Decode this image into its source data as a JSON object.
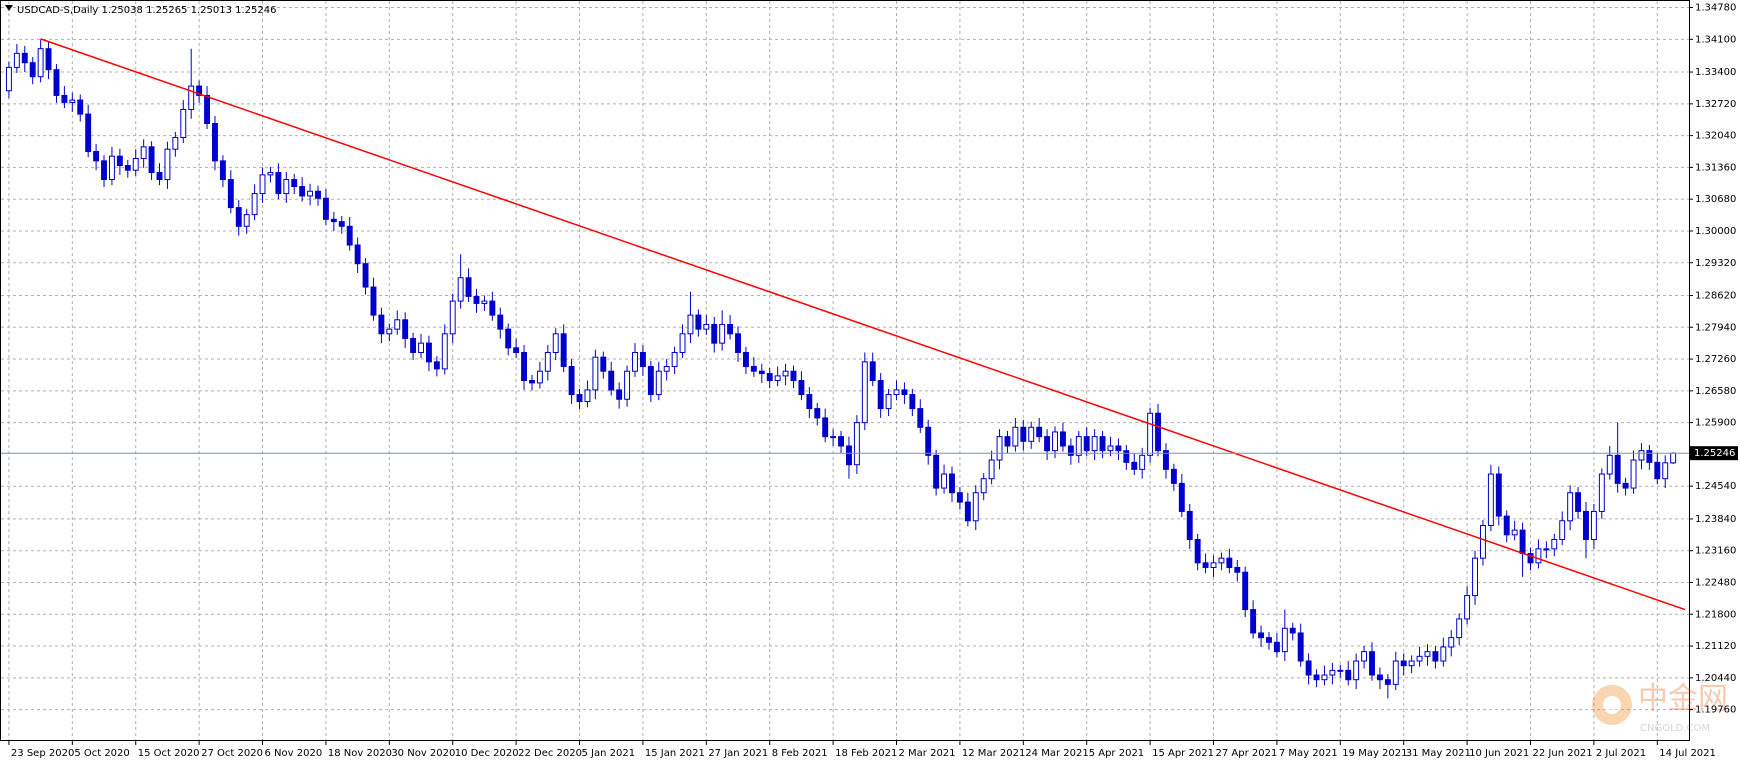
{
  "chart_data": {
    "type": "candlestick",
    "symbol": "USDCAD-S,Daily",
    "up_color": "#ffffff",
    "down_color": "#0000cc",
    "wick_color": "#0000cc",
    "grid": true,
    "ylim": [
      1.1911,
      1.3492
    ],
    "yticks": [
      {
        "value": 1.3478,
        "label": "1.34780"
      },
      {
        "value": 1.341,
        "label": "1.34100"
      },
      {
        "value": 1.334,
        "label": "1.33400"
      },
      {
        "value": 1.3272,
        "label": "1.32720"
      },
      {
        "value": 1.3204,
        "label": "1.32040"
      },
      {
        "value": 1.3136,
        "label": "1.31360"
      },
      {
        "value": 1.3068,
        "label": "1.30680"
      },
      {
        "value": 1.3,
        "label": "1.30000"
      },
      {
        "value": 1.2932,
        "label": "1.29320"
      },
      {
        "value": 1.2862,
        "label": "1.28620"
      },
      {
        "value": 1.2794,
        "label": "1.27940"
      },
      {
        "value": 1.2726,
        "label": "1.27260"
      },
      {
        "value": 1.2658,
        "label": "1.26580"
      },
      {
        "value": 1.259,
        "label": "1.25900"
      },
      {
        "value": 1.2454,
        "label": "1.24540"
      },
      {
        "value": 1.2384,
        "label": "1.23840"
      },
      {
        "value": 1.2316,
        "label": "1.23160"
      },
      {
        "value": 1.2248,
        "label": "1.22480"
      },
      {
        "value": 1.218,
        "label": "1.21800"
      },
      {
        "value": 1.2112,
        "label": "1.21120"
      },
      {
        "value": 1.2044,
        "label": "1.20440"
      },
      {
        "value": 1.1976,
        "label": "1.19760"
      }
    ],
    "xlim": [
      -1,
      212
    ],
    "xticks": [
      {
        "value": 0,
        "label": "23 Sep 2020"
      },
      {
        "value": 8,
        "label": "5 Oct 2020"
      },
      {
        "value": 16,
        "label": "15 Oct 2020"
      },
      {
        "value": 24,
        "label": "27 Oct 2020"
      },
      {
        "value": 32,
        "label": "6 Nov 2020"
      },
      {
        "value": 40,
        "label": "18 Nov 2020"
      },
      {
        "value": 48,
        "label": "30 Nov 2020"
      },
      {
        "value": 56,
        "label": "10 Dec 2020"
      },
      {
        "value": 64,
        "label": "22 Dec 2020"
      },
      {
        "value": 72,
        "label": "5 Jan 2021"
      },
      {
        "value": 80,
        "label": "15 Jan 2021"
      },
      {
        "value": 88,
        "label": "27 Jan 2021"
      },
      {
        "value": 96,
        "label": "8 Feb 2021"
      },
      {
        "value": 104,
        "label": "18 Feb 2021"
      },
      {
        "value": 112,
        "label": "2 Mar 2021"
      },
      {
        "value": 120,
        "label": "12 Mar 2021"
      },
      {
        "value": 128,
        "label": "24 Mar 2021"
      },
      {
        "value": 136,
        "label": "5 Apr 2021"
      },
      {
        "value": 144,
        "label": "15 Apr 2021"
      },
      {
        "value": 152,
        "label": "27 Apr 2021"
      },
      {
        "value": 160,
        "label": "7 May 2021"
      },
      {
        "value": 168,
        "label": "19 May 2021"
      },
      {
        "value": 176,
        "label": "31 May 2021"
      },
      {
        "value": 184,
        "label": "10 Jun 2021"
      },
      {
        "value": 192,
        "label": "22 Jun 2021"
      },
      {
        "value": 200,
        "label": "2 Jul 2021"
      },
      {
        "value": 208,
        "label": "14 Jul 2021"
      }
    ],
    "open": [
      1.33,
      1.335,
      1.338,
      1.336,
      1.333,
      1.339,
      1.3345,
      1.329,
      1.3275,
      1.328,
      1.325,
      1.317,
      1.315,
      1.311,
      1.316,
      1.314,
      1.313,
      1.3155,
      1.318,
      1.3125,
      1.311,
      1.3175,
      1.32,
      1.326,
      1.331,
      1.329,
      1.323,
      1.315,
      1.311,
      1.305,
      1.301,
      1.3035,
      1.308,
      1.312,
      1.3125,
      1.308,
      1.311,
      1.3095,
      1.3075,
      1.3085,
      1.307,
      1.3025,
      1.302,
      1.301,
      1.297,
      1.293,
      1.288,
      1.282,
      1.278,
      1.279,
      1.281,
      1.277,
      1.274,
      1.276,
      1.272,
      1.2705,
      1.278,
      1.285,
      1.29,
      1.286,
      1.2845,
      1.285,
      1.282,
      1.279,
      1.275,
      1.274,
      1.268,
      1.2675,
      1.27,
      1.274,
      1.278,
      1.271,
      1.265,
      1.2635,
      1.266,
      1.273,
      1.27,
      1.266,
      1.264,
      1.27,
      1.274,
      1.271,
      1.265,
      1.27,
      1.271,
      1.274,
      1.278,
      1.282,
      1.279,
      1.28,
      1.276,
      1.28,
      1.278,
      1.274,
      1.271,
      1.27,
      1.2695,
      1.268,
      1.269,
      1.27,
      1.268,
      1.265,
      1.262,
      1.26,
      1.256,
      1.256,
      1.254,
      1.25,
      1.259,
      1.272,
      1.268,
      1.262,
      1.265,
      1.266,
      1.265,
      1.262,
      1.258,
      1.252,
      1.245,
      1.248,
      1.244,
      1.242,
      1.238,
      1.244,
      1.247,
      1.251,
      1.256,
      1.254,
      1.258,
      1.255,
      1.258,
      1.256,
      1.253,
      1.257,
      1.254,
      1.252,
      1.256,
      1.253,
      1.256,
      1.253,
      1.254,
      1.253,
      1.2505,
      1.249,
      1.252,
      1.261,
      1.253,
      1.249,
      1.246,
      1.24,
      1.234,
      1.229,
      1.228,
      1.229,
      1.23,
      1.228,
      1.227,
      1.219,
      1.214,
      1.213,
      1.212,
      1.21,
      1.215,
      1.214,
      1.208,
      1.205,
      1.204,
      1.205,
      1.206,
      1.206,
      1.204,
      1.208,
      1.21,
      1.205,
      1.204,
      1.203,
      1.208,
      1.207,
      1.208,
      1.209,
      1.21,
      1.208,
      1.211,
      1.213,
      1.217,
      1.222,
      1.23,
      1.237,
      1.248,
      1.239,
      1.235,
      1.236,
      1.231,
      1.229,
      1.232,
      1.232,
      1.234,
      1.238,
      1.244,
      1.24,
      1.234,
      1.24,
      1.248,
      1.252,
      1.246,
      1.245,
      1.251,
      1.253,
      1.2505,
      1.247,
      1.25038
    ],
    "high": [
      1.3362,
      1.34,
      1.3396,
      1.3372,
      1.341,
      1.3406,
      1.3357,
      1.331,
      1.3296,
      1.3292,
      1.327,
      1.3186,
      1.3162,
      1.318,
      1.3176,
      1.3152,
      1.3175,
      1.3196,
      1.3192,
      1.3145,
      1.3191,
      1.3212,
      1.328,
      1.339,
      1.3322,
      1.331,
      1.3246,
      1.3162,
      1.313,
      1.3066,
      1.3047,
      1.31,
      1.3136,
      1.3137,
      1.3145,
      1.3126,
      1.3122,
      1.3115,
      1.3101,
      1.3097,
      1.309,
      1.3041,
      1.3032,
      1.303,
      1.2986,
      1.2942,
      1.29,
      1.2836,
      1.2802,
      1.283,
      1.2826,
      1.2782,
      1.278,
      1.2776,
      1.2732,
      1.28,
      1.2866,
      1.295,
      1.292,
      1.2876,
      1.2862,
      1.287,
      1.2836,
      1.2802,
      1.277,
      1.2756,
      1.2692,
      1.272,
      1.2756,
      1.2792,
      1.28,
      1.2726,
      1.2662,
      1.268,
      1.2746,
      1.2742,
      1.272,
      1.2676,
      1.2712,
      1.276,
      1.2756,
      1.2722,
      1.272,
      1.2726,
      1.2752,
      1.28,
      1.287,
      1.2832,
      1.282,
      1.2816,
      1.283,
      1.282,
      1.2796,
      1.2752,
      1.273,
      1.2716,
      1.2707,
      1.271,
      1.2716,
      1.2712,
      1.27,
      1.2666,
      1.2632,
      1.262,
      1.2576,
      1.2572,
      1.256,
      1.2606,
      1.274,
      1.274,
      1.2696,
      1.2662,
      1.268,
      1.2676,
      1.2662,
      1.264,
      1.2596,
      1.2532,
      1.25,
      1.2496,
      1.2452,
      1.244,
      1.2456,
      1.2482,
      1.253,
      1.2576,
      1.2572,
      1.26,
      1.2596,
      1.2592,
      1.26,
      1.2576,
      1.2582,
      1.259,
      1.2556,
      1.2572,
      1.258,
      1.2576,
      1.2572,
      1.256,
      1.2556,
      1.2542,
      1.2525,
      1.2536,
      1.2622,
      1.263,
      1.2546,
      1.2502,
      1.248,
      1.2416,
      1.2352,
      1.231,
      1.2306,
      1.2312,
      1.232,
      1.2296,
      1.2282,
      1.221,
      1.2156,
      1.2142,
      1.214,
      1.219,
      1.2162,
      1.216,
      1.2096,
      1.2062,
      1.207,
      1.2076,
      1.2072,
      1.208,
      1.2096,
      1.2112,
      1.212,
      1.2066,
      1.2052,
      1.21,
      1.2096,
      1.2092,
      1.211,
      1.2116,
      1.2112,
      1.213,
      1.2146,
      1.2182,
      1.224,
      1.2316,
      1.2382,
      1.25,
      1.2496,
      1.2402,
      1.238,
      1.2376,
      1.2322,
      1.234,
      1.2336,
      1.2352,
      1.24,
      1.2456,
      1.2452,
      1.242,
      1.2416,
      1.2492,
      1.254,
      1.259,
      1.2472,
      1.253,
      1.2546,
      1.2542,
      1.2525,
      1.252,
      1.25265
    ],
    "low": [
      1.3284,
      1.3338,
      1.334,
      1.3314,
      1.3318,
      1.3325,
      1.3274,
      1.3263,
      1.3255,
      1.3234,
      1.3158,
      1.313,
      1.3094,
      1.3098,
      1.312,
      1.3114,
      1.3118,
      1.3135,
      1.3109,
      1.3098,
      1.309,
      1.3159,
      1.3188,
      1.324,
      1.3274,
      1.3218,
      1.313,
      1.3094,
      1.3038,
      1.299,
      1.2994,
      1.3023,
      1.306,
      1.3104,
      1.3068,
      1.306,
      1.3079,
      1.3063,
      1.3055,
      1.3054,
      1.3013,
      1.3,
      1.2994,
      1.2958,
      1.291,
      1.2864,
      1.2808,
      1.276,
      1.2764,
      1.2778,
      1.275,
      1.2724,
      1.2728,
      1.27,
      1.2689,
      1.2693,
      1.276,
      1.2834,
      1.2848,
      1.2825,
      1.2829,
      1.2808,
      1.277,
      1.2734,
      1.2728,
      1.266,
      1.2659,
      1.2663,
      1.268,
      1.2724,
      1.2698,
      1.263,
      1.2619,
      1.2623,
      1.264,
      1.2684,
      1.2648,
      1.262,
      1.2624,
      1.2688,
      1.269,
      1.2634,
      1.2638,
      1.268,
      1.2694,
      1.2728,
      1.276,
      1.2774,
      1.2778,
      1.274,
      1.2744,
      1.2768,
      1.272,
      1.2694,
      1.2688,
      1.2675,
      1.2664,
      1.2668,
      1.267,
      1.2664,
      1.2638,
      1.26,
      1.2584,
      1.2548,
      1.254,
      1.2524,
      1.247,
      1.248,
      1.2574,
      1.2668,
      1.26,
      1.2604,
      1.2638,
      1.263,
      1.2604,
      1.2568,
      1.25,
      1.2434,
      1.2438,
      1.242,
      1.2404,
      1.2368,
      1.236,
      1.2424,
      1.2458,
      1.249,
      1.2524,
      1.2528,
      1.253,
      1.2534,
      1.2548,
      1.251,
      1.2514,
      1.2528,
      1.25,
      1.2504,
      1.2518,
      1.251,
      1.2514,
      1.2518,
      1.251,
      1.2489,
      1.2478,
      1.247,
      1.2504,
      1.2518,
      1.247,
      1.2444,
      1.2388,
      1.232,
      1.2274,
      1.2268,
      1.226,
      1.2274,
      1.2268,
      1.225,
      1.2174,
      1.2128,
      1.211,
      1.2104,
      1.2088,
      1.208,
      1.2124,
      1.2068,
      1.203,
      1.2024,
      1.2028,
      1.203,
      1.2044,
      1.2028,
      1.202,
      1.2064,
      1.2038,
      1.202,
      1.2,
      1.2018,
      1.205,
      1.2054,
      1.2068,
      1.207,
      1.2064,
      1.2068,
      1.209,
      1.2114,
      1.2158,
      1.22,
      1.2284,
      1.2358,
      1.237,
      1.2334,
      1.2338,
      1.226,
      1.2274,
      1.2278,
      1.23,
      1.2304,
      1.2328,
      1.236,
      1.2384,
      1.23,
      1.232,
      1.2384,
      1.2468,
      1.244,
      1.2434,
      1.2438,
      1.249,
      1.2489,
      1.2458,
      1.245,
      1.25013
    ],
    "close": [
      1.335,
      1.338,
      1.336,
      1.333,
      1.339,
      1.3345,
      1.329,
      1.3275,
      1.328,
      1.325,
      1.317,
      1.315,
      1.311,
      1.316,
      1.314,
      1.313,
      1.3155,
      1.318,
      1.3125,
      1.311,
      1.3175,
      1.32,
      1.326,
      1.331,
      1.329,
      1.323,
      1.315,
      1.311,
      1.305,
      1.301,
      1.3035,
      1.308,
      1.312,
      1.3125,
      1.308,
      1.311,
      1.3095,
      1.3075,
      1.3085,
      1.307,
      1.3025,
      1.302,
      1.301,
      1.297,
      1.293,
      1.288,
      1.282,
      1.278,
      1.279,
      1.281,
      1.277,
      1.274,
      1.276,
      1.272,
      1.2705,
      1.278,
      1.285,
      1.29,
      1.286,
      1.2845,
      1.285,
      1.282,
      1.279,
      1.275,
      1.274,
      1.268,
      1.2675,
      1.27,
      1.274,
      1.278,
      1.271,
      1.265,
      1.2635,
      1.266,
      1.273,
      1.27,
      1.266,
      1.264,
      1.27,
      1.274,
      1.271,
      1.265,
      1.27,
      1.271,
      1.274,
      1.278,
      1.282,
      1.279,
      1.28,
      1.276,
      1.28,
      1.278,
      1.274,
      1.271,
      1.27,
      1.2695,
      1.268,
      1.269,
      1.27,
      1.268,
      1.265,
      1.262,
      1.26,
      1.256,
      1.256,
      1.254,
      1.25,
      1.259,
      1.272,
      1.268,
      1.262,
      1.265,
      1.266,
      1.265,
      1.262,
      1.258,
      1.252,
      1.245,
      1.248,
      1.244,
      1.242,
      1.238,
      1.244,
      1.247,
      1.251,
      1.256,
      1.254,
      1.258,
      1.255,
      1.258,
      1.256,
      1.253,
      1.257,
      1.254,
      1.252,
      1.256,
      1.253,
      1.256,
      1.253,
      1.254,
      1.253,
      1.2505,
      1.249,
      1.252,
      1.261,
      1.253,
      1.249,
      1.246,
      1.24,
      1.234,
      1.229,
      1.228,
      1.229,
      1.23,
      1.228,
      1.227,
      1.219,
      1.214,
      1.213,
      1.212,
      1.21,
      1.215,
      1.214,
      1.208,
      1.205,
      1.204,
      1.205,
      1.206,
      1.206,
      1.204,
      1.208,
      1.21,
      1.205,
      1.204,
      1.203,
      1.208,
      1.207,
      1.208,
      1.209,
      1.21,
      1.208,
      1.211,
      1.213,
      1.217,
      1.222,
      1.23,
      1.237,
      1.248,
      1.239,
      1.235,
      1.236,
      1.231,
      1.229,
      1.232,
      1.232,
      1.234,
      1.238,
      1.244,
      1.24,
      1.234,
      1.24,
      1.248,
      1.252,
      1.246,
      1.245,
      1.251,
      1.253,
      1.2505,
      1.247,
      1.2504,
      1.25246
    ],
    "trendline": {
      "color": "#ff0000",
      "x": [
        4,
        211.5
      ],
      "y": [
        1.3411,
        1.219
      ]
    },
    "watermark": {
      "title": "中金网",
      "subtitle": "CNGOLD.COM"
    }
  }
}
